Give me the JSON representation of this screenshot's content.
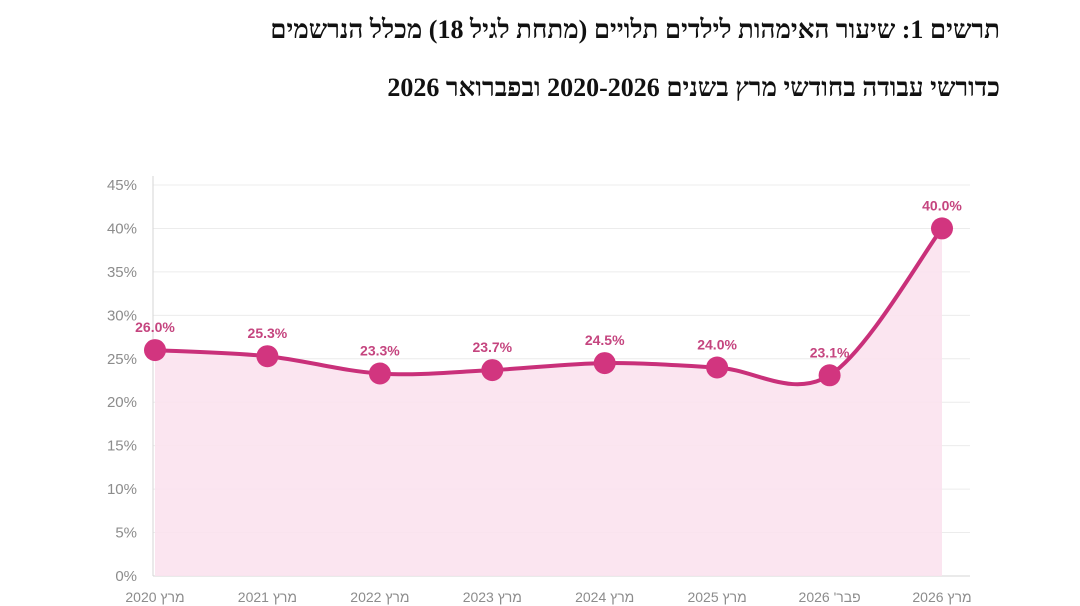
{
  "chart_data": {
    "type": "line",
    "title_lines": [
      "תרשים 1: שיעור האימהות לילדים תלויים (מתחת לגיל 18) מכלל הנרשמים",
      "כדורשי עבודה בחודשי מרץ בשנים 2020-2026 ובפברואר 2026"
    ],
    "categories": [
      "מרץ 2020",
      "מרץ 2021",
      "מרץ 2022",
      "מרץ 2023",
      "מרץ 2024",
      "מרץ 2025",
      "פבר' 2026",
      "מרץ 2026"
    ],
    "values": [
      26.0,
      25.3,
      23.3,
      23.7,
      24.5,
      24.0,
      23.1,
      40.0
    ],
    "data_labels": [
      "26.0%",
      "25.3%",
      "23.3%",
      "23.7%",
      "24.5%",
      "24.0%",
      "23.1%",
      "40.0%"
    ],
    "ylim": [
      0,
      45
    ],
    "yticks": [
      0,
      5,
      10,
      15,
      20,
      25,
      30,
      35,
      40,
      45
    ],
    "ytick_labels": [
      "0%",
      "5%",
      "10%",
      "15%",
      "20%",
      "25%",
      "30%",
      "35%",
      "40%",
      "45%"
    ],
    "grid": true,
    "legend": "none",
    "smooth": true,
    "area_fill": true,
    "colors": {
      "line": "#c9307a",
      "marker": "#d2357f",
      "area": "#fbe2ee",
      "data_label": "#c5457f",
      "grid": "#ececec",
      "axis": "#d6d6d6",
      "tick_text": "#8c8c8c"
    }
  }
}
